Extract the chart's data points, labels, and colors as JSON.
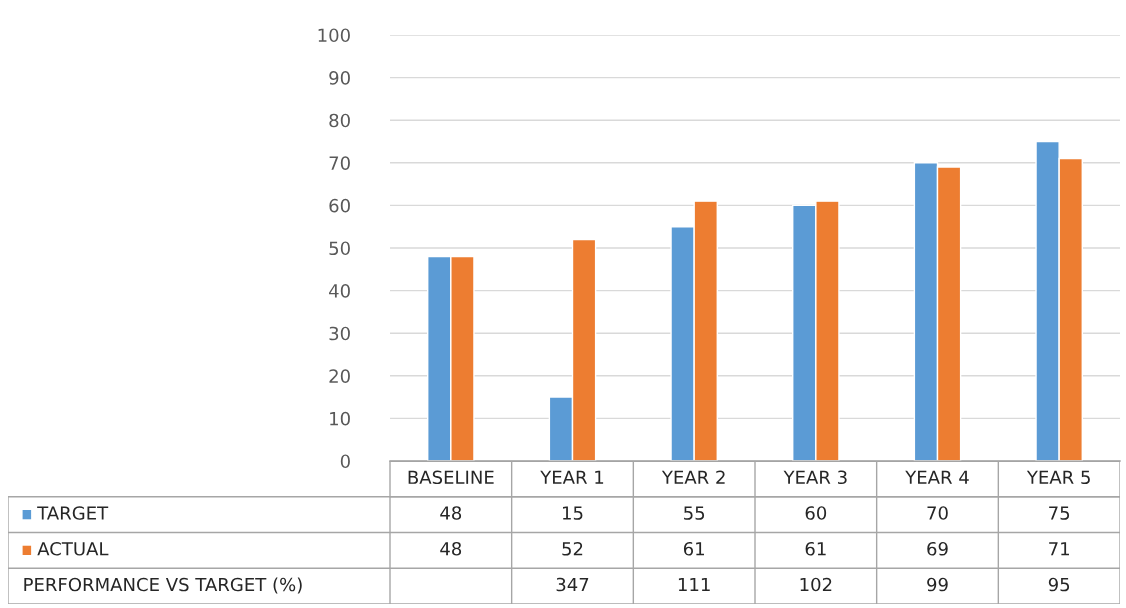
{
  "chart_data": {
    "type": "bar",
    "categories": [
      "BASELINE",
      "YEAR 1",
      "YEAR 2",
      "YEAR 3",
      "YEAR 4",
      "YEAR 5"
    ],
    "series": [
      {
        "name": "TARGET",
        "color": "#5b9bd5",
        "values": [
          48,
          15,
          55,
          60,
          70,
          75
        ]
      },
      {
        "name": "ACTUAL",
        "color": "#ed7d31",
        "values": [
          48,
          52,
          61,
          61,
          69,
          71
        ]
      }
    ],
    "annotations": [
      "PERFORMANCE VS TARGET (%)",
      "347",
      "111",
      "102",
      "99",
      "95"
    ],
    "ylim": [
      0,
      100
    ],
    "yticks": [
      0,
      10,
      20,
      30,
      40,
      50,
      60,
      70,
      80,
      90,
      100
    ],
    "grid": "y",
    "data_labels": true,
    "legend": "bottom"
  }
}
